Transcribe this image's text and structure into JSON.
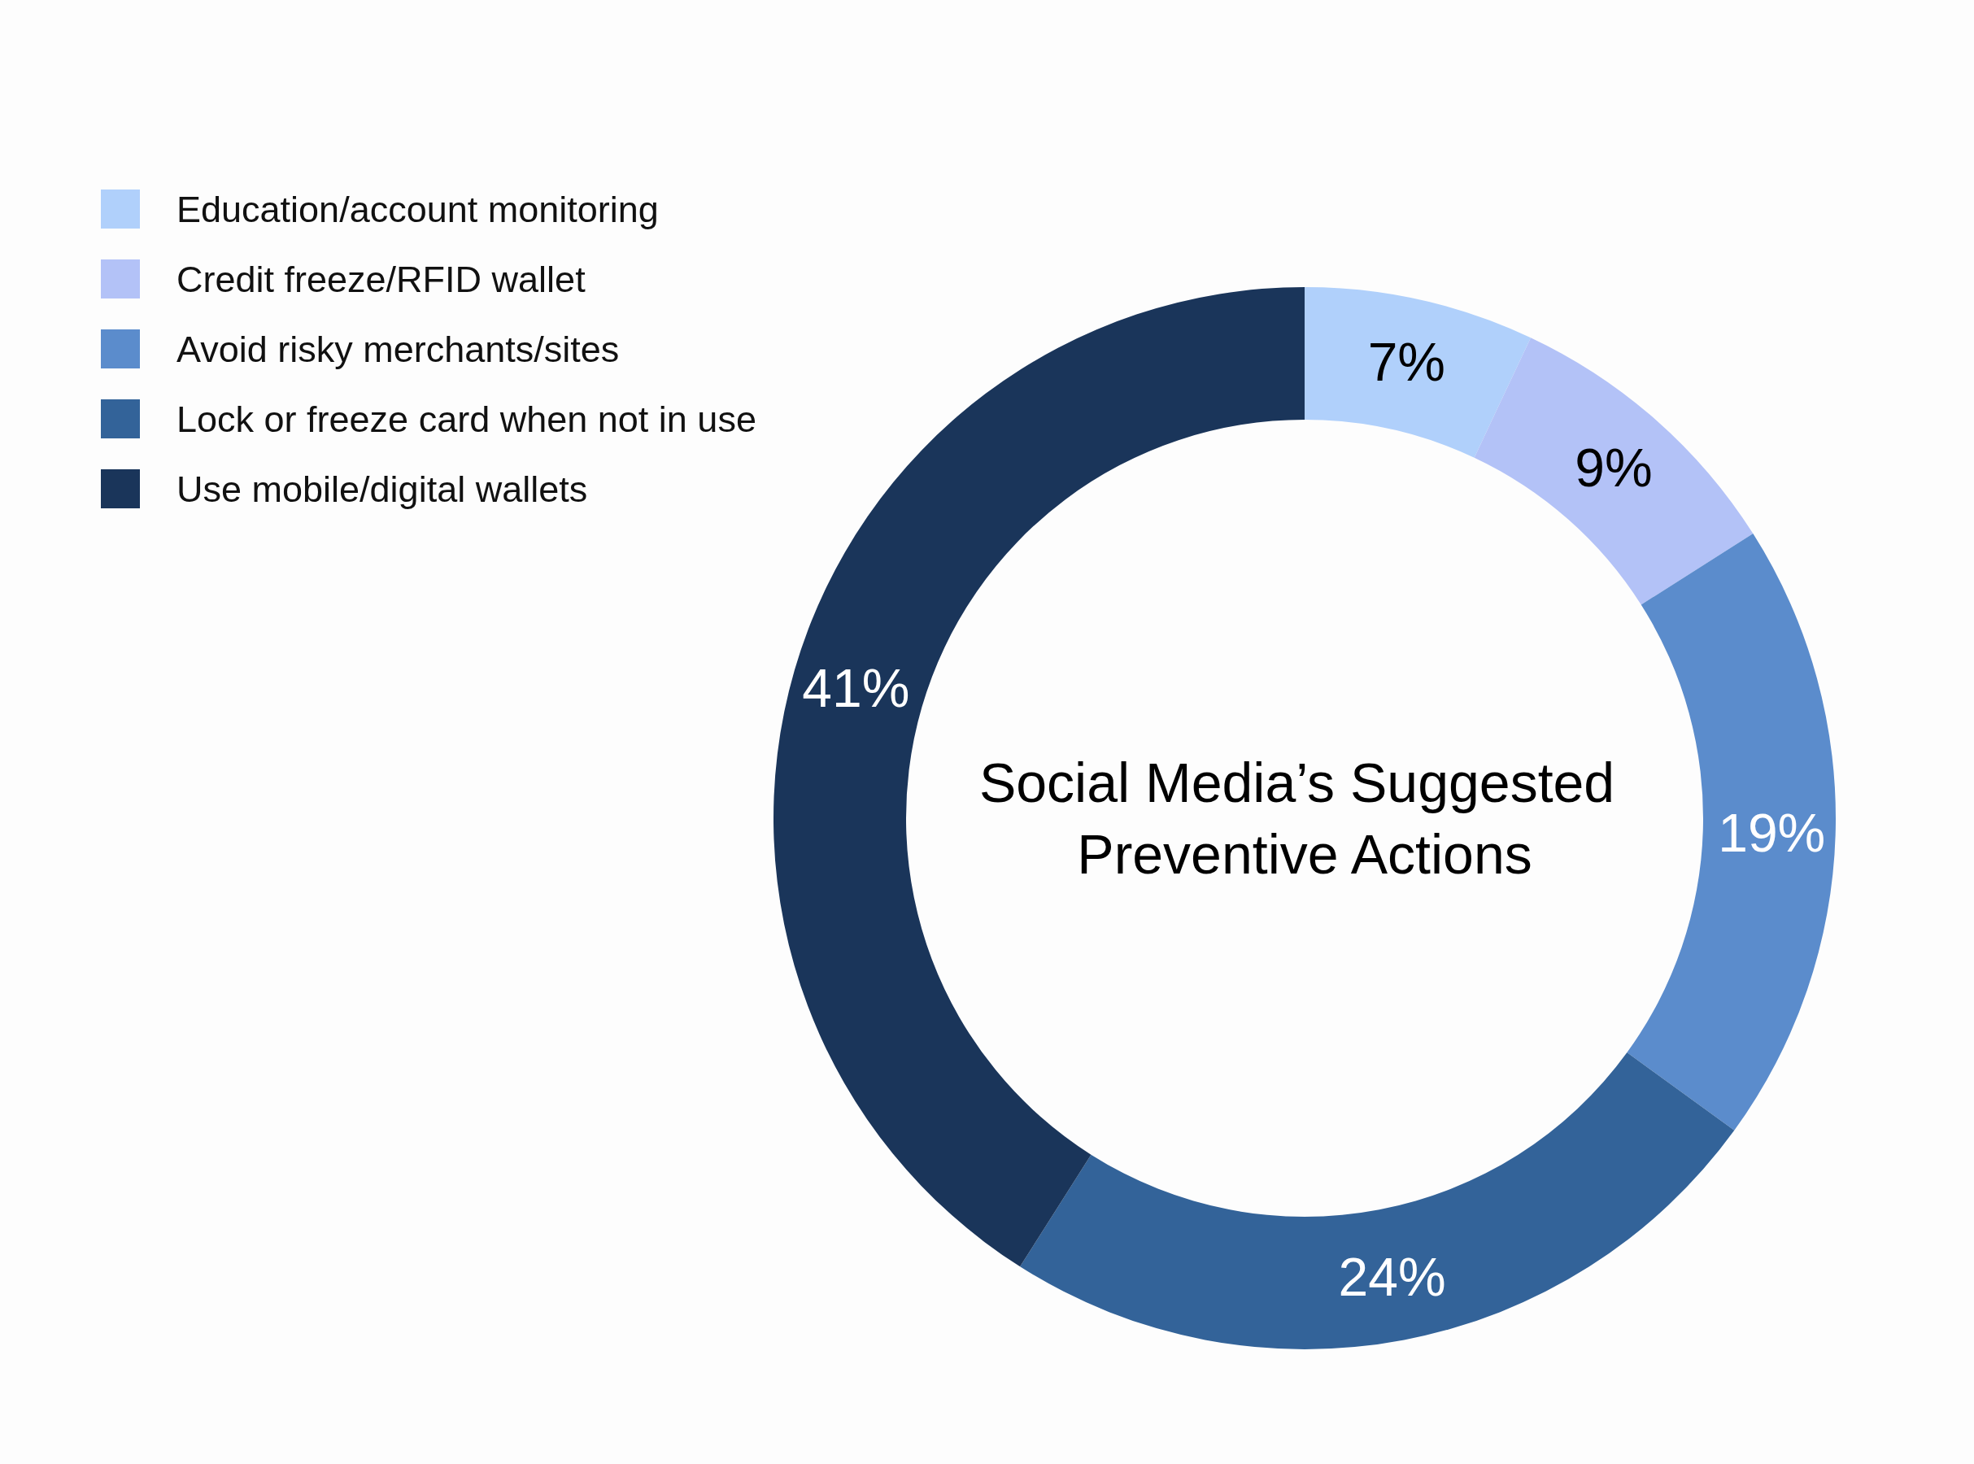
{
  "chart_data": {
    "type": "donut",
    "title": "Social Media’s Suggested Preventive Actions",
    "categories": [
      "Education/account monitoring",
      "Credit freeze/RFID wallet",
      "Avoid risky merchants/sites",
      "Lock or freeze card when not in use",
      "Use mobile/digital wallets"
    ],
    "values": [
      7,
      9,
      19,
      24,
      41
    ],
    "colors": [
      "#b0d0fb",
      "#b3c2f7",
      "#5b8ccc",
      "#336399",
      "#1a355a"
    ],
    "value_labels": [
      "7%",
      "9%",
      "19%",
      "24%",
      "41%"
    ],
    "legend": "top left"
  }
}
